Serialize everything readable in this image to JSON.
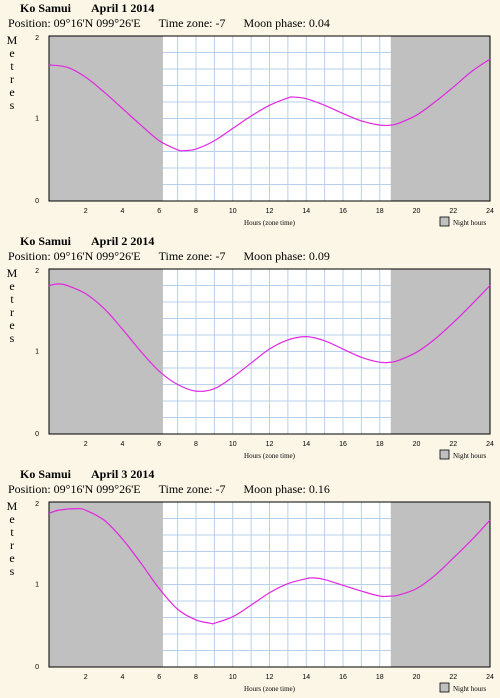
{
  "colors": {
    "background": "#fbf6e6",
    "night": "#c0c0c0",
    "grid": "#b9d0ec",
    "curve": "#e028e0",
    "axis": "#000000"
  },
  "chart_data": [
    {
      "type": "line",
      "title": "Ko Samui",
      "date": "April 1 2014",
      "position": "Position: 09°16'N 099°26'E",
      "timezone": "Time zone: -7",
      "moon": "Moon phase: 0.04",
      "ylabel": "Metres",
      "xlabel": "Hours (zone time)",
      "legend": "Night hours",
      "xlim": [
        0,
        24
      ],
      "ylim": [
        0,
        2
      ],
      "xticks": [
        2,
        4,
        6,
        8,
        10,
        12,
        14,
        16,
        18,
        20,
        22,
        24
      ],
      "yticks": [
        0,
        1,
        2
      ],
      "night": [
        [
          0,
          6.2
        ],
        [
          18.6,
          24
        ]
      ],
      "x": [
        0,
        1,
        2,
        3,
        4,
        5,
        6,
        7,
        7.3,
        8,
        9,
        10,
        11,
        12,
        13,
        13.3,
        14,
        15,
        16,
        17,
        18,
        18.6,
        19,
        20,
        21,
        22,
        23,
        24
      ],
      "y": [
        1.65,
        1.62,
        1.5,
        1.32,
        1.12,
        0.92,
        0.73,
        0.62,
        0.61,
        0.63,
        0.73,
        0.88,
        1.03,
        1.16,
        1.25,
        1.26,
        1.24,
        1.16,
        1.06,
        0.97,
        0.92,
        0.92,
        0.94,
        1.04,
        1.2,
        1.38,
        1.57,
        1.72
      ]
    },
    {
      "type": "line",
      "title": "Ko Samui",
      "date": "April 2 2014",
      "position": "Position: 09°16'N 099°26'E",
      "timezone": "Time zone: -7",
      "moon": "Moon phase: 0.09",
      "ylabel": "Metres",
      "xlabel": "Hours (zone time)",
      "legend": "Night hours",
      "xlim": [
        0,
        24
      ],
      "ylim": [
        0,
        2
      ],
      "xticks": [
        2,
        4,
        6,
        8,
        10,
        12,
        14,
        16,
        18,
        20,
        22,
        24
      ],
      "yticks": [
        0,
        1,
        2
      ],
      "night": [
        [
          0,
          6.2
        ],
        [
          18.6,
          24
        ]
      ],
      "x": [
        0,
        0.5,
        1,
        2,
        3,
        4,
        5,
        6,
        7,
        8,
        9,
        10,
        11,
        12,
        13,
        14,
        15,
        16,
        17,
        18,
        18.6,
        19,
        20,
        21,
        22,
        23,
        24
      ],
      "y": [
        1.8,
        1.82,
        1.8,
        1.7,
        1.52,
        1.27,
        1.0,
        0.76,
        0.6,
        0.52,
        0.55,
        0.69,
        0.86,
        1.03,
        1.14,
        1.18,
        1.13,
        1.03,
        0.93,
        0.87,
        0.87,
        0.89,
        0.99,
        1.15,
        1.35,
        1.57,
        1.8
      ]
    },
    {
      "type": "line",
      "title": "Ko Samui",
      "date": "April 3 2014",
      "position": "Position: 09°16'N 099°26'E",
      "timezone": "Time zone: -7",
      "moon": "Moon phase: 0.16",
      "ylabel": "Metres",
      "xlabel": "Hours (zone time)",
      "legend": "Night hours",
      "xlim": [
        0,
        24
      ],
      "ylim": [
        0,
        2
      ],
      "xticks": [
        2,
        4,
        6,
        8,
        10,
        12,
        14,
        16,
        18,
        20,
        22,
        24
      ],
      "yticks": [
        0,
        1,
        2
      ],
      "night": [
        [
          0,
          6.2
        ],
        [
          18.6,
          24
        ]
      ],
      "x": [
        0,
        0.5,
        1.5,
        2,
        3,
        4,
        5,
        6,
        7,
        8,
        8.8,
        9,
        10,
        11,
        12,
        13,
        14,
        14.4,
        15,
        16,
        17,
        18,
        18.6,
        19,
        20,
        21,
        22,
        23,
        24
      ],
      "y": [
        1.86,
        1.9,
        1.92,
        1.9,
        1.78,
        1.55,
        1.26,
        0.95,
        0.7,
        0.57,
        0.53,
        0.53,
        0.61,
        0.75,
        0.9,
        1.01,
        1.07,
        1.08,
        1.06,
        0.99,
        0.92,
        0.86,
        0.86,
        0.87,
        0.95,
        1.11,
        1.32,
        1.54,
        1.78
      ]
    }
  ]
}
